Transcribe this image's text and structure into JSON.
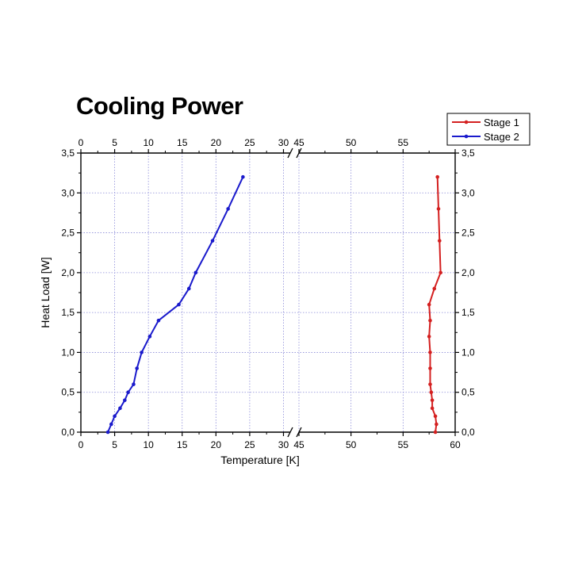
{
  "chart_data": {
    "type": "line",
    "title": "Cooling Power",
    "xlabel": "Temperature [K]",
    "ylabel": "Heat Load [W]",
    "axis_break": [
      31,
      45
    ],
    "xlim": [
      0,
      60
    ],
    "ylim": [
      0,
      3.5
    ],
    "x_ticks": [
      0,
      5,
      10,
      15,
      20,
      25,
      30,
      45,
      50,
      55,
      60
    ],
    "x_tick_labels": [
      "0",
      "5",
      "10",
      "15",
      "20",
      "25",
      "30",
      "45",
      "50",
      "55",
      "60"
    ],
    "y_ticks": [
      0,
      0.5,
      1.0,
      1.5,
      2.0,
      2.5,
      3.0,
      3.5
    ],
    "y_tick_labels": [
      "0,0",
      "0,5",
      "1,0",
      "1,5",
      "2,0",
      "2,5",
      "3,0",
      "3,5"
    ],
    "grid": true,
    "legend_position": "top-right",
    "series": [
      {
        "name": "Stage 1",
        "color": "#d42020",
        "points": [
          [
            58.1,
            0.0
          ],
          [
            58.2,
            0.1
          ],
          [
            58.1,
            0.2
          ],
          [
            57.8,
            0.3
          ],
          [
            57.8,
            0.4
          ],
          [
            57.7,
            0.5
          ],
          [
            57.6,
            0.6
          ],
          [
            57.6,
            0.8
          ],
          [
            57.6,
            1.0
          ],
          [
            57.5,
            1.2
          ],
          [
            57.6,
            1.4
          ],
          [
            57.5,
            1.6
          ],
          [
            58.0,
            1.8
          ],
          [
            58.6,
            2.0
          ],
          [
            58.5,
            2.4
          ],
          [
            58.4,
            2.8
          ],
          [
            58.3,
            3.2
          ]
        ]
      },
      {
        "name": "Stage 2",
        "color": "#1a1acc",
        "points": [
          [
            4.0,
            0.0
          ],
          [
            4.5,
            0.1
          ],
          [
            5.0,
            0.2
          ],
          [
            5.8,
            0.3
          ],
          [
            6.5,
            0.4
          ],
          [
            7.0,
            0.5
          ],
          [
            7.8,
            0.6
          ],
          [
            8.3,
            0.8
          ],
          [
            9.0,
            1.0
          ],
          [
            10.2,
            1.2
          ],
          [
            11.5,
            1.4
          ],
          [
            14.5,
            1.6
          ],
          [
            16.0,
            1.8
          ],
          [
            17.0,
            2.0
          ],
          [
            19.5,
            2.4
          ],
          [
            21.8,
            2.8
          ],
          [
            24.0,
            3.2
          ]
        ]
      }
    ]
  }
}
